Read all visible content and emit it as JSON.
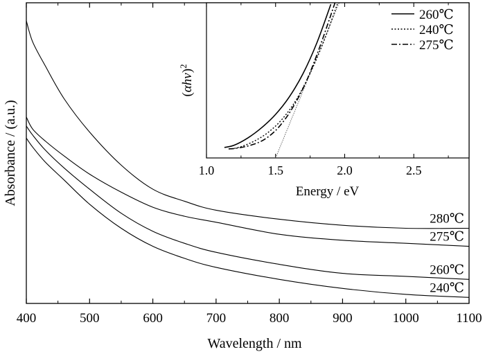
{
  "chart_data": [
    {
      "type": "line",
      "xlabel": "Wavelength / nm",
      "ylabel": "Absorbance / (a.u.)",
      "xlim": [
        400,
        1100
      ],
      "ylim": [
        0,
        1
      ],
      "xticks": [
        "400",
        "500",
        "600",
        "700",
        "800",
        "900",
        "1000",
        "1100"
      ],
      "y_tick_labels_shown": false,
      "series": [
        {
          "name": "280℃",
          "x": [
            400,
            410,
            430,
            460,
            500,
            550,
            600,
            650,
            700,
            800,
            900,
            1000,
            1100
          ],
          "values": [
            0.94,
            0.87,
            0.79,
            0.68,
            0.57,
            0.46,
            0.38,
            0.34,
            0.31,
            0.28,
            0.26,
            0.25,
            0.25
          ]
        },
        {
          "name": "275℃",
          "x": [
            400,
            410,
            430,
            460,
            500,
            550,
            600,
            650,
            700,
            800,
            900,
            1000,
            1100
          ],
          "values": [
            0.62,
            0.58,
            0.54,
            0.49,
            0.43,
            0.37,
            0.32,
            0.29,
            0.27,
            0.23,
            0.21,
            0.2,
            0.19
          ]
        },
        {
          "name": "260℃",
          "x": [
            400,
            410,
            430,
            460,
            500,
            550,
            600,
            650,
            700,
            800,
            900,
            1000,
            1100
          ],
          "values": [
            0.59,
            0.56,
            0.51,
            0.45,
            0.38,
            0.3,
            0.24,
            0.2,
            0.17,
            0.13,
            0.1,
            0.09,
            0.08
          ]
        },
        {
          "name": "240℃",
          "x": [
            400,
            410,
            430,
            460,
            500,
            550,
            600,
            650,
            700,
            800,
            900,
            1000,
            1100
          ],
          "values": [
            0.55,
            0.52,
            0.47,
            0.41,
            0.33,
            0.25,
            0.19,
            0.15,
            0.12,
            0.08,
            0.05,
            0.03,
            0.02
          ]
        }
      ],
      "curve_labels": [
        "280℃",
        "275℃",
        "260℃",
        "240℃"
      ]
    },
    {
      "type": "line",
      "placement": "inset-top-right",
      "xlabel": "Energy / eV",
      "ylabel_parts": [
        "(",
        "αhν",
        ")",
        "2"
      ],
      "xlim": [
        1.0,
        2.9
      ],
      "ylim": [
        0,
        1
      ],
      "xticks": [
        "1.0",
        "1.5",
        "2.0",
        "2.5"
      ],
      "legend_position": "top-right",
      "series": [
        {
          "name": "260℃",
          "style": "solid",
          "x": [
            1.13,
            1.2,
            1.3,
            1.4,
            1.5,
            1.6,
            1.7,
            1.8,
            1.9
          ],
          "values": [
            0.015,
            0.03,
            0.08,
            0.15,
            0.24,
            0.36,
            0.52,
            0.73,
            0.99
          ]
        },
        {
          "name": "240℃",
          "style": "dotted",
          "x": [
            1.18,
            1.25,
            1.35,
            1.45,
            1.55,
            1.65,
            1.75,
            1.85,
            1.95
          ],
          "values": [
            0.005,
            0.02,
            0.06,
            0.12,
            0.21,
            0.34,
            0.52,
            0.74,
            1.0
          ]
        },
        {
          "name": "275℃",
          "style": "dashdot",
          "x": [
            1.16,
            1.22,
            1.32,
            1.42,
            1.52,
            1.62,
            1.72,
            1.82,
            1.93
          ],
          "values": [
            0.005,
            0.01,
            0.03,
            0.07,
            0.15,
            0.28,
            0.46,
            0.7,
            1.0
          ]
        }
      ],
      "tangent": {
        "x": [
          1.5,
          1.96
        ],
        "values": [
          0.0,
          1.0
        ]
      }
    }
  ]
}
